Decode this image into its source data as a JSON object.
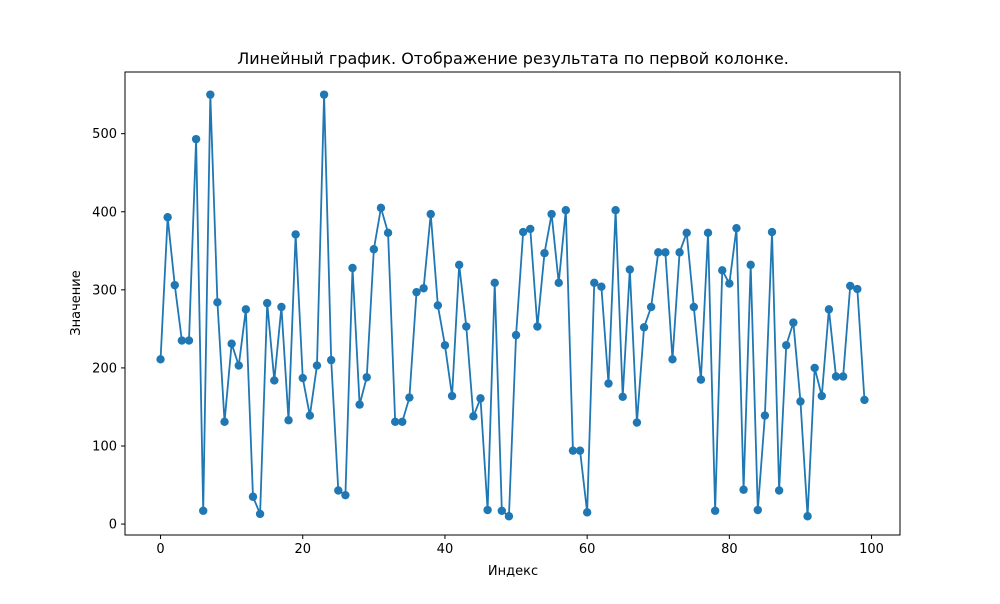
{
  "chart_data": {
    "type": "line",
    "title": "Линейный график. Отображение результата по первой колонке.",
    "xlabel": "Индекс",
    "ylabel": "Значение",
    "xlim": [
      -5,
      104
    ],
    "ylim": [
      -14,
      579
    ],
    "x_ticks": [
      0,
      20,
      40,
      60,
      80,
      100
    ],
    "y_ticks": [
      0,
      100,
      200,
      300,
      400,
      500
    ],
    "grid": false,
    "markers": true,
    "series": [
      {
        "color": "#1f77b4",
        "x": [
          0,
          1,
          2,
          3,
          4,
          5,
          6,
          7,
          8,
          9,
          10,
          11,
          12,
          13,
          14,
          15,
          16,
          17,
          18,
          19,
          20,
          21,
          22,
          23,
          24,
          25,
          26,
          27,
          28,
          29,
          30,
          31,
          32,
          33,
          34,
          35,
          36,
          37,
          38,
          39,
          40,
          41,
          42,
          43,
          44,
          45,
          46,
          47,
          48,
          49,
          50,
          51,
          52,
          53,
          54,
          55,
          56,
          57,
          58,
          59,
          60,
          61,
          62,
          63,
          64,
          65,
          66,
          67,
          68,
          69,
          70,
          71,
          72,
          73,
          74,
          75,
          76,
          77,
          78,
          79,
          80,
          81,
          82,
          83,
          84,
          85,
          86,
          87,
          88,
          89,
          90,
          91,
          92,
          93,
          94,
          95,
          96,
          97,
          98,
          99
        ],
        "y": [
          211,
          393,
          306,
          235,
          235,
          493,
          17,
          550,
          284,
          131,
          231,
          203,
          275,
          35,
          13,
          283,
          184,
          278,
          133,
          371,
          187,
          139,
          203,
          550,
          210,
          43,
          37,
          328,
          153,
          188,
          352,
          405,
          373,
          131,
          131,
          162,
          297,
          302,
          397,
          280,
          229,
          164,
          332,
          253,
          138,
          161,
          18,
          309,
          17,
          10,
          242,
          374,
          378,
          253,
          347,
          397,
          309,
          402,
          94,
          94,
          15,
          309,
          304,
          180,
          402,
          163,
          326,
          130,
          252,
          278,
          348,
          348,
          211,
          348,
          373,
          278,
          185,
          373,
          17,
          325,
          308,
          379,
          44,
          332,
          18,
          139,
          374,
          43,
          229,
          258,
          157,
          10,
          200,
          164,
          275,
          189,
          189,
          305,
          301,
          159
        ]
      }
    ]
  }
}
